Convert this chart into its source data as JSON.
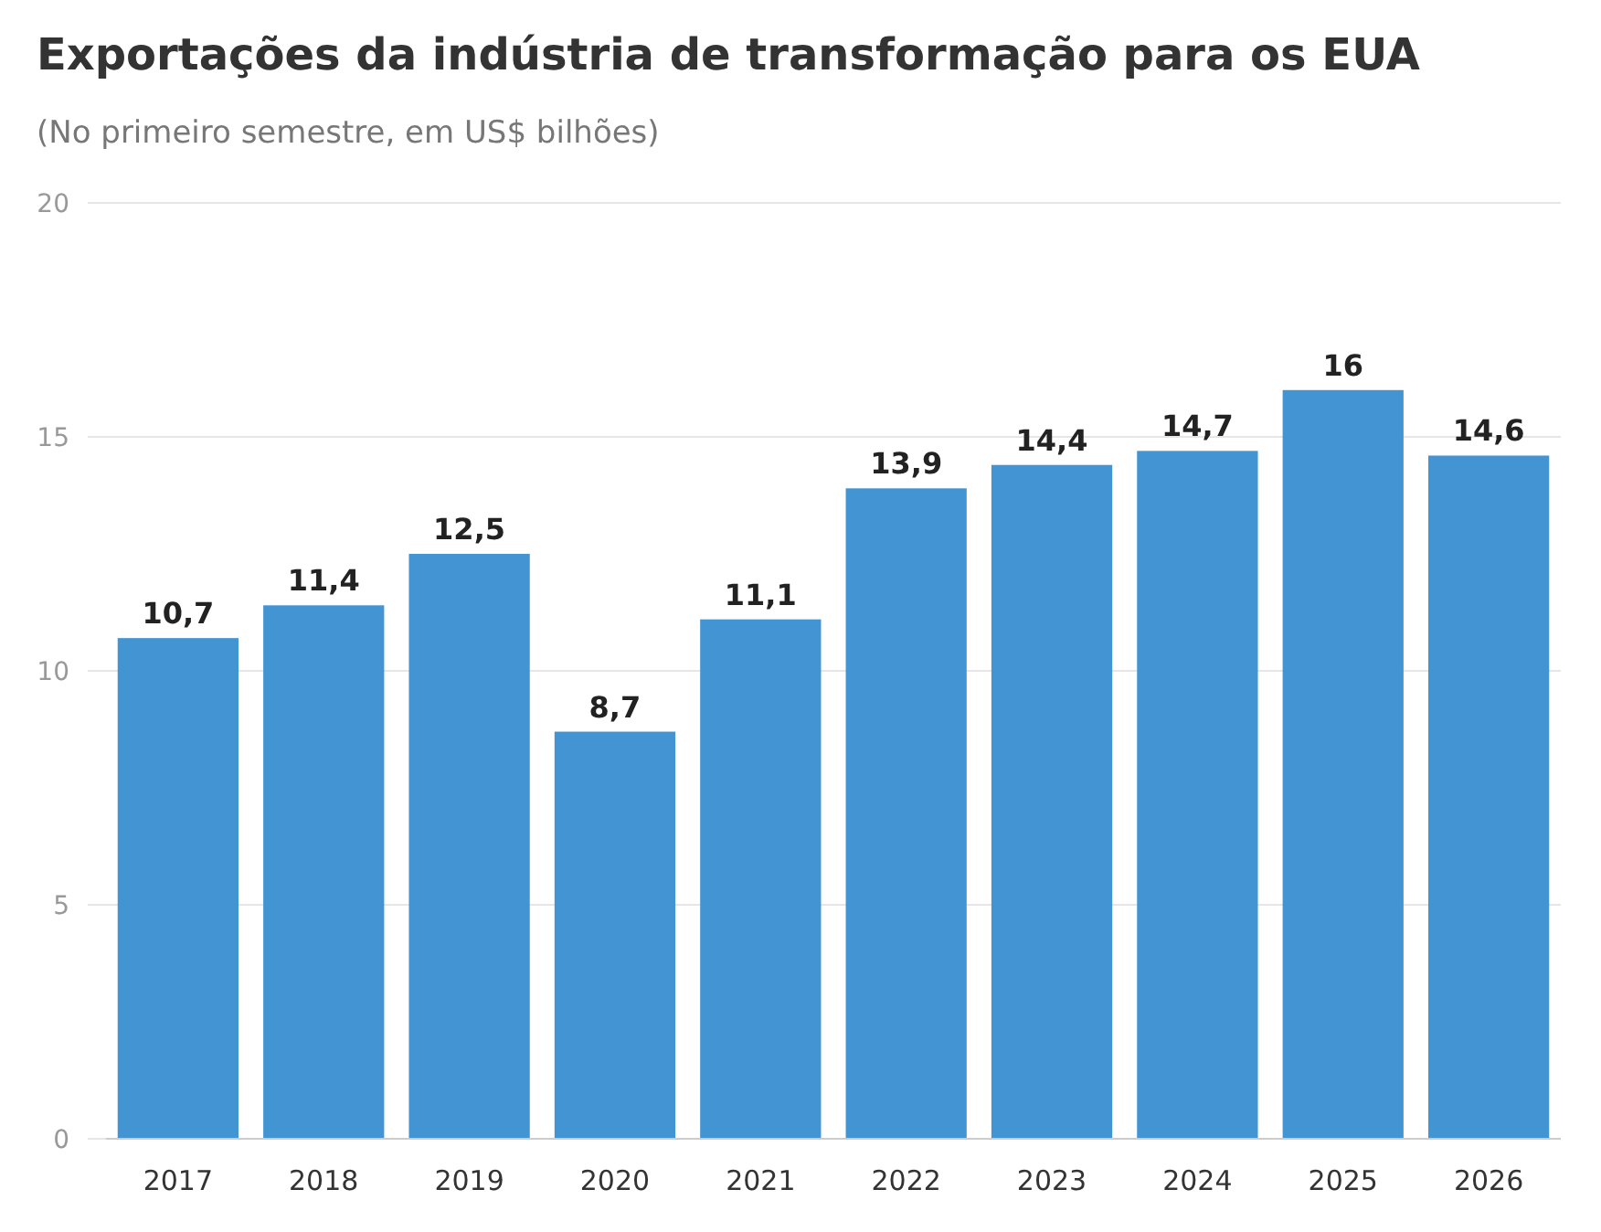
{
  "chart_data": {
    "type": "bar",
    "title": "Exportações da indústria de transformação para os EUA",
    "subtitle": "(No primeiro semestre, em US$ bilhões)",
    "categories": [
      "2017",
      "2018",
      "2019",
      "2020",
      "2021",
      "2022",
      "2023",
      "2024",
      "2025",
      "2026"
    ],
    "values": [
      10.7,
      11.4,
      12.5,
      8.7,
      11.1,
      13.9,
      14.4,
      14.7,
      16,
      14.6
    ],
    "value_labels": [
      "10,7",
      "11,4",
      "12,5",
      "8,7",
      "11,1",
      "13,9",
      "14,4",
      "14,7",
      "16",
      "14,6"
    ],
    "color": "#4394d3",
    "ylim": [
      0,
      20
    ],
    "yticks": [
      0,
      5,
      10,
      15,
      20
    ],
    "grid": "y"
  }
}
